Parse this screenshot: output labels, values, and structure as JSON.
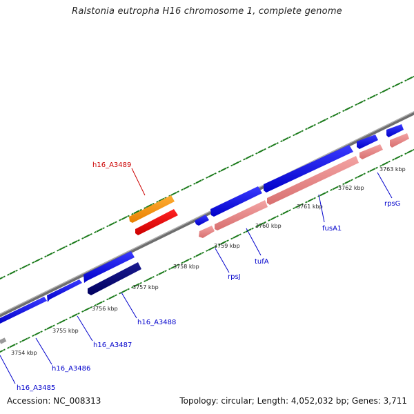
{
  "title": "Ralstonia eutropha H16 chromosome 1, complete genome",
  "footer": {
    "accession": "Accession: NC_008313",
    "topology": "Topology: circular; Length: 4,052,032 bp; Genes: 3,711"
  },
  "colors": {
    "backbone": "#8c8c8c",
    "forward_gene": "#0000ee",
    "forward_gene_dark": "#00007a",
    "reverse_gene": "#e88a8a",
    "highlight_orange": "#ff9900",
    "highlight_red": "#ee0000",
    "tick": "#1a7a1a",
    "label_blue": "#0000cc",
    "label_red": "#cc0000"
  },
  "kbp_ticks": [
    "3754 kbp",
    "3755 kbp",
    "3756 kbp",
    "3757 kbp",
    "3758 kbp",
    "3759 kbp",
    "3760 kbp",
    "3761 kbp",
    "3762 kbp",
    "3763 kbp"
  ],
  "gene_labels": [
    {
      "name": "h16_A3485",
      "color": "blue"
    },
    {
      "name": "h16_A3486",
      "color": "blue"
    },
    {
      "name": "h16_A3487",
      "color": "blue"
    },
    {
      "name": "h16_A3488",
      "color": "blue"
    },
    {
      "name": "h16_A3489",
      "color": "red"
    },
    {
      "name": "rpsJ",
      "color": "blue"
    },
    {
      "name": "tufA",
      "color": "blue"
    },
    {
      "name": "fusA1",
      "color": "blue"
    },
    {
      "name": "rpsG",
      "color": "blue"
    }
  ]
}
